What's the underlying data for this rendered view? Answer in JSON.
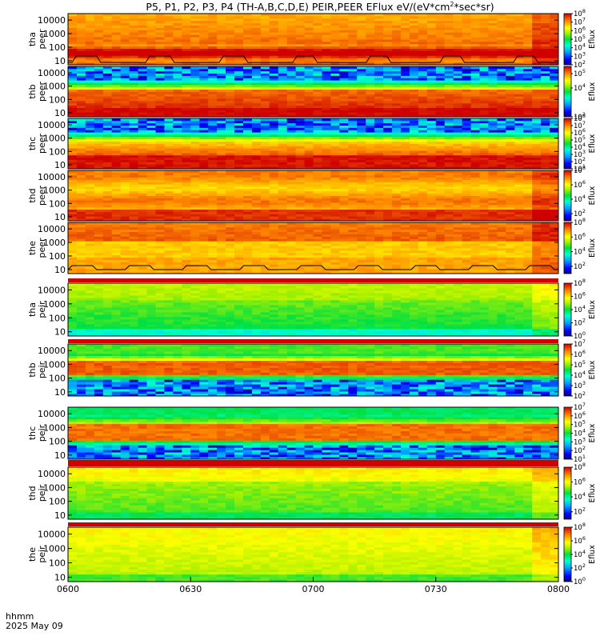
{
  "chart_data": {
    "type": "heatmap",
    "title": "P5, P1, P2, P3, P4 (TH-A,B,C,D,E) PEIR,PEER EFlux eV/(eV*cm^2*sec*sr)",
    "title_parts": {
      "main": "P5, P1, P2, P3, P4 (TH-A,B,C,D,E) PEIR,PEER EFlux eV/(eV*cm",
      "sup": "2",
      "tail": "*sec*sr)"
    },
    "x_axis": {
      "ticks": [
        "0600",
        "0630",
        "0700",
        "0730",
        "0800"
      ],
      "range": [
        "0600",
        "0800"
      ],
      "label_line1": "hhmm",
      "label_line2": "2025 May 09"
    },
    "y_axis": {
      "scale": "log",
      "range": [
        5,
        30000
      ],
      "ticks": [
        "10000",
        "1000",
        "100",
        "10"
      ]
    },
    "colorbar_label": "Eflux",
    "panels": [
      {
        "probe": "tha",
        "species": "peer",
        "ticks": [
          "10000",
          "1000",
          "100",
          "10"
        ],
        "cbar_ticks": [
          "10^8",
          "10^7",
          "10^6",
          "10^5",
          "10^4",
          "10^3",
          "10^2"
        ],
        "cmin": 2,
        "cmax": 8,
        "profile": "peer_a",
        "fill_gaps": []
      },
      {
        "probe": "thb",
        "species": "peer",
        "ticks": [
          "10000",
          "1000",
          "100",
          "10"
        ],
        "cbar_ticks": [
          "10^5",
          "10^4",
          "10^2"
        ],
        "cmin": 2,
        "cmax": 5.5,
        "profile": "peer_b",
        "fill_gaps": []
      },
      {
        "probe": "thc",
        "species": "peer",
        "ticks": [
          "10000",
          "1000",
          "100",
          "10"
        ],
        "cbar_ticks": [
          "10^8",
          "10^7",
          "10^6",
          "10^5",
          "10^4",
          "10^3",
          "10^2",
          "10^1"
        ],
        "cmin": 1,
        "cmax": 8,
        "profile": "peer_c",
        "fill_gaps": []
      },
      {
        "probe": "thd",
        "species": "peer",
        "ticks": [
          "10000",
          "1000",
          "100",
          "10"
        ],
        "cbar_ticks": [
          "10^8",
          "10^6",
          "10^4",
          "10^2"
        ],
        "cmin": 1,
        "cmax": 8,
        "profile": "peer_d",
        "fill_gaps": []
      },
      {
        "probe": "the",
        "species": "peer",
        "ticks": [
          "10000",
          "1000",
          "100",
          "10"
        ],
        "cbar_ticks": [
          "10^8",
          "10^6",
          "10^4",
          "10^2"
        ],
        "cmin": 1,
        "cmax": 8,
        "profile": "peer_e",
        "fill_gaps": []
      },
      {
        "probe": "tha",
        "species": "peir",
        "ticks": [
          "10000",
          "1000",
          "100",
          "10"
        ],
        "cbar_ticks": [
          "10^8",
          "10^6",
          "10^4",
          "10^2",
          "10^0"
        ],
        "cmin": 0,
        "cmax": 8,
        "profile": "peir_a",
        "fill_gaps": [
          "top"
        ]
      },
      {
        "probe": "thb",
        "species": "peir",
        "ticks": [
          "10000",
          "1000",
          "100",
          "10"
        ],
        "cbar_ticks": [
          "10^7",
          "10^6",
          "10^5",
          "10^4",
          "10^3",
          "10^2"
        ],
        "cmin": 2,
        "cmax": 7,
        "profile": "peir_b",
        "fill_gaps": [
          "top"
        ]
      },
      {
        "probe": "thc",
        "species": "peir",
        "ticks": [
          "10000",
          "1000",
          "100",
          "10"
        ],
        "cbar_ticks": [
          "10^7",
          "10^6",
          "10^5",
          "10^4",
          "10^3",
          "10^2",
          "10^1"
        ],
        "cmin": 1,
        "cmax": 7,
        "profile": "peir_c",
        "fill_gaps": [
          "bottom"
        ]
      },
      {
        "probe": "thd",
        "species": "peir",
        "ticks": [
          "10000",
          "1000",
          "100",
          "10"
        ],
        "cbar_ticks": [
          "10^8",
          "10^6",
          "10^4",
          "10^2"
        ],
        "cmin": 1,
        "cmax": 8,
        "profile": "peir_d",
        "fill_gaps": [
          "top"
        ]
      },
      {
        "probe": "the",
        "species": "peir",
        "ticks": [
          "10000",
          "1000",
          "100",
          "10"
        ],
        "cbar_ticks": [
          "10^8",
          "10^6",
          "10^4",
          "10^2",
          "10^0"
        ],
        "cmin": 0,
        "cmax": 8,
        "profile": "peir_e",
        "fill_gaps": [
          "top"
        ]
      }
    ]
  }
}
